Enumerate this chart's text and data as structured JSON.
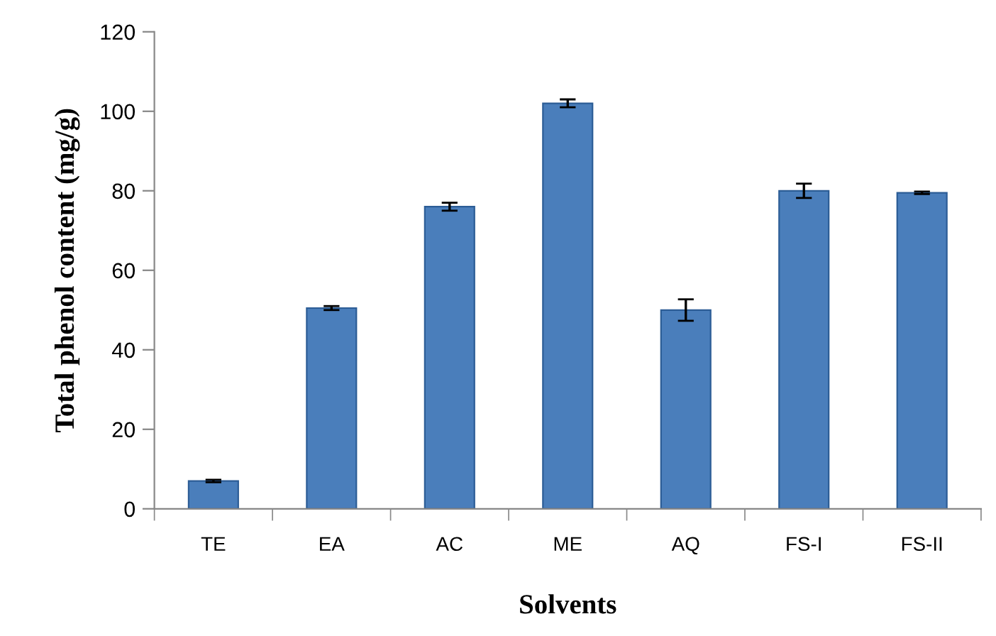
{
  "chart_data": {
    "type": "bar",
    "categories": [
      "TE",
      "EA",
      "AC",
      "ME",
      "AQ",
      "FS-I",
      "FS-II"
    ],
    "values": [
      7,
      50.5,
      76,
      102,
      50,
      80,
      79.5
    ],
    "errors": [
      0.3,
      0.5,
      1,
      1,
      2.7,
      1.8,
      0.3
    ],
    "color": "#4a7ebb",
    "xlabel": "Solvents",
    "ylabel": "Total phenol content (mg/g)",
    "ylim": [
      0,
      120
    ],
    "yticks": [
      0,
      20,
      40,
      60,
      80,
      100,
      120
    ],
    "grid": false
  }
}
